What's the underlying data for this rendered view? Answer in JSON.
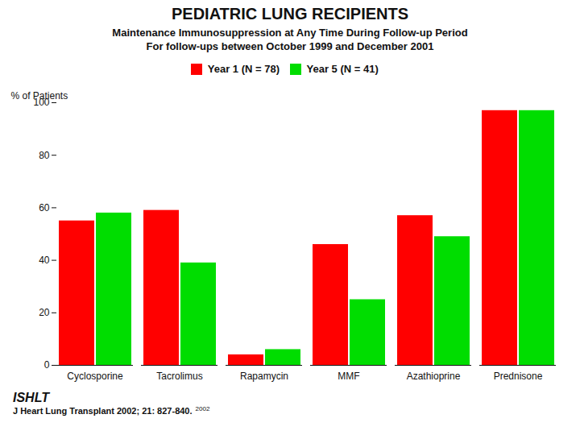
{
  "chart_data": {
    "type": "bar",
    "title": "PEDIATRIC LUNG RECIPIENTS",
    "subtitle": [
      "Maintenance Immunosuppression at Any Time During Follow-up Period",
      "For follow-ups between October 1999 and December 2001"
    ],
    "categories": [
      "Cyclosporine",
      "Tacrolimus",
      "Rapamycin",
      "MMF",
      "Azathioprine",
      "Prednisone"
    ],
    "series": [
      {
        "name": "Year 1    (N = 78)",
        "color": "#FF0000",
        "values": [
          55,
          59,
          4,
          46,
          57,
          97
        ]
      },
      {
        "name": "Year 5    (N = 41)",
        "color": "#00DD00",
        "values": [
          58,
          39,
          6,
          25,
          49,
          97
        ]
      }
    ],
    "ylabel": "% of Patients",
    "ylim": [
      0,
      100
    ],
    "yticks": [
      0,
      20,
      40,
      60,
      80,
      100
    ],
    "grid": false,
    "annotations": [
      "ISHLT",
      "J Heart Lung Transplant 2002; 21: 827-840.",
      "2002"
    ]
  }
}
